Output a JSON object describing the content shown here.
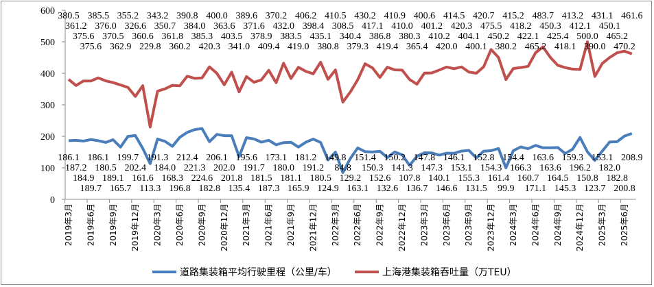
{
  "chart_data": {
    "type": "line",
    "title": "",
    "xlabel": "",
    "ylabel": "",
    "ylim": [
      0,
      600
    ],
    "yticks": [
      0,
      100,
      200,
      300,
      400,
      500,
      600
    ],
    "grid": false,
    "legend_position": "bottom",
    "x_tick_labels": [
      "2019年3月",
      "2019年6月",
      "2019年9月",
      "2019年12月",
      "2020年3月",
      "2020年6月",
      "2020年9月",
      "2020年12月",
      "2021年3月",
      "2021年6月",
      "2021年9月",
      "2021年12月",
      "2022年3月",
      "2022年6月",
      "2022年9月",
      "2022年12月",
      "2023年3月",
      "2023年6月",
      "2023年9月",
      "2023年12月",
      "2024年3月",
      "2024年6月",
      "2024年9月",
      "2024年12月",
      "2025年3月",
      "2025年6月"
    ],
    "x_start": "2019-03",
    "x_end": "2025-09",
    "series": [
      {
        "name": "道路集装箱平均行驶里程（公里/车）",
        "color": "#4a7ebb",
        "values": [
          186.1,
          187.2,
          184.9,
          189.7,
          186.1,
          180.5,
          189.1,
          165.7,
          199.7,
          202.4,
          161.6,
          113.3,
          191.3,
          184.0,
          168.3,
          196.8,
          212.4,
          221.3,
          224.6,
          182.8,
          206.1,
          202.0,
          201.8,
          135.4,
          195.6,
          191.7,
          181.5,
          187.3,
          173.1,
          180.0,
          181.1,
          165.9,
          181.2,
          191.2,
          180.5,
          124.9,
          149.8,
          84.8,
          129.2,
          163.1,
          151.4,
          150.3,
          152.6,
          132.6,
          150.2,
          141.3,
          107.8,
          136.7,
          147.8,
          147.3,
          140.1,
          146.6,
          146.1,
          153.1,
          155.3,
          131.5,
          152.8,
          154.3,
          161.4,
          99.9,
          154.4,
          166.3,
          160.7,
          171.1,
          163.6,
          163.6,
          164.5,
          145.3,
          159.3,
          196.2,
          150.8,
          123.7,
          153.1,
          182.0,
          182.8,
          200.8,
          208.9
        ]
      },
      {
        "name": "上海港集装箱吞吐量（万TEU）",
        "color": "#c0504d",
        "values": [
          380.5,
          361.2,
          375.6,
          375.6,
          385.5,
          376.0,
          370.5,
          362.9,
          355.2,
          326.6,
          360.6,
          229.8,
          343.2,
          350.7,
          361.8,
          360.2,
          390.8,
          384.0,
          385.3,
          420.3,
          400.0,
          363.6,
          403.5,
          341.0,
          389.6,
          371.6,
          378.9,
          409.4,
          370.2,
          432.0,
          383.5,
          419.0,
          406.2,
          398.4,
          435.1,
          380.8,
          410.5,
          308.5,
          340.4,
          379.3,
          430.2,
          417.1,
          386.8,
          419.4,
          410.9,
          410.0,
          380.3,
          365.4,
          400.6,
          401.2,
          410.2,
          420.0,
          414.5,
          420.3,
          404.1,
          400.1,
          420.7,
          475.5,
          450.2,
          380.2,
          415.2,
          418.2,
          422.1,
          465.2,
          483.7,
          450.3,
          425.4,
          418.1,
          413.2,
          412.1,
          500.0,
          390.0,
          431.1,
          450.1,
          465.2,
          470.2,
          461.6
        ]
      }
    ]
  }
}
